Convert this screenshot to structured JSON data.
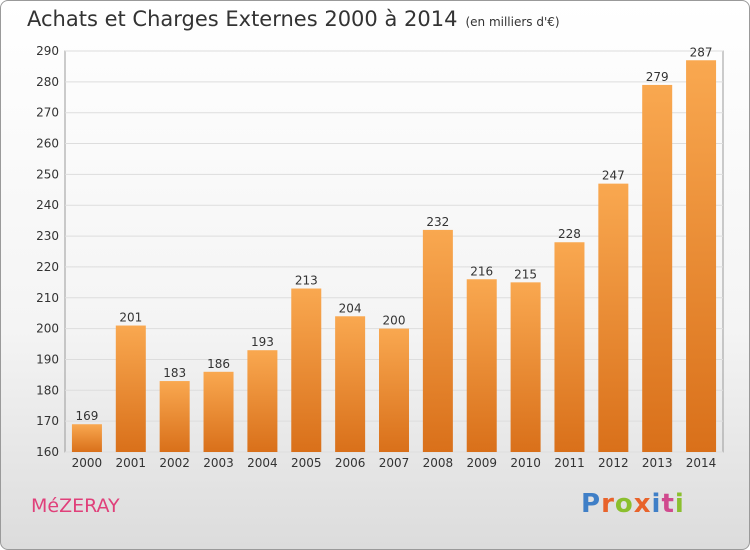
{
  "title": "Achats et Charges Externes 2000 à 2014",
  "unit": "(en milliers d'€)",
  "commune": "MéZERAY",
  "logo": {
    "letters": [
      "P",
      "r",
      "o",
      "x",
      "i",
      "t",
      "i"
    ],
    "colors": [
      "#3f7fc7",
      "#e8632b",
      "#8bbf2e",
      "#e8632b",
      "#3f7fc7",
      "#d04a8e",
      "#8bbf2e"
    ]
  },
  "colors": {
    "bar_top": "#f9a850",
    "bar_bottom": "#d9701a",
    "text": "#333333",
    "commune": "#e0407a"
  },
  "chart_data": {
    "type": "bar",
    "title": "Achats et Charges Externes 2000 à 2014",
    "xlabel": "",
    "ylabel": "",
    "categories": [
      "2000",
      "2001",
      "2002",
      "2003",
      "2004",
      "2005",
      "2006",
      "2007",
      "2008",
      "2009",
      "2010",
      "2011",
      "2012",
      "2013",
      "2014"
    ],
    "values": [
      169,
      201,
      183,
      186,
      193,
      213,
      204,
      200,
      232,
      216,
      215,
      228,
      247,
      279,
      287
    ],
    "ylim": [
      160,
      290
    ],
    "yticks": [
      160,
      170,
      180,
      190,
      200,
      210,
      220,
      230,
      240,
      250,
      260,
      270,
      280,
      290
    ],
    "grid": true,
    "data_labels": true
  }
}
